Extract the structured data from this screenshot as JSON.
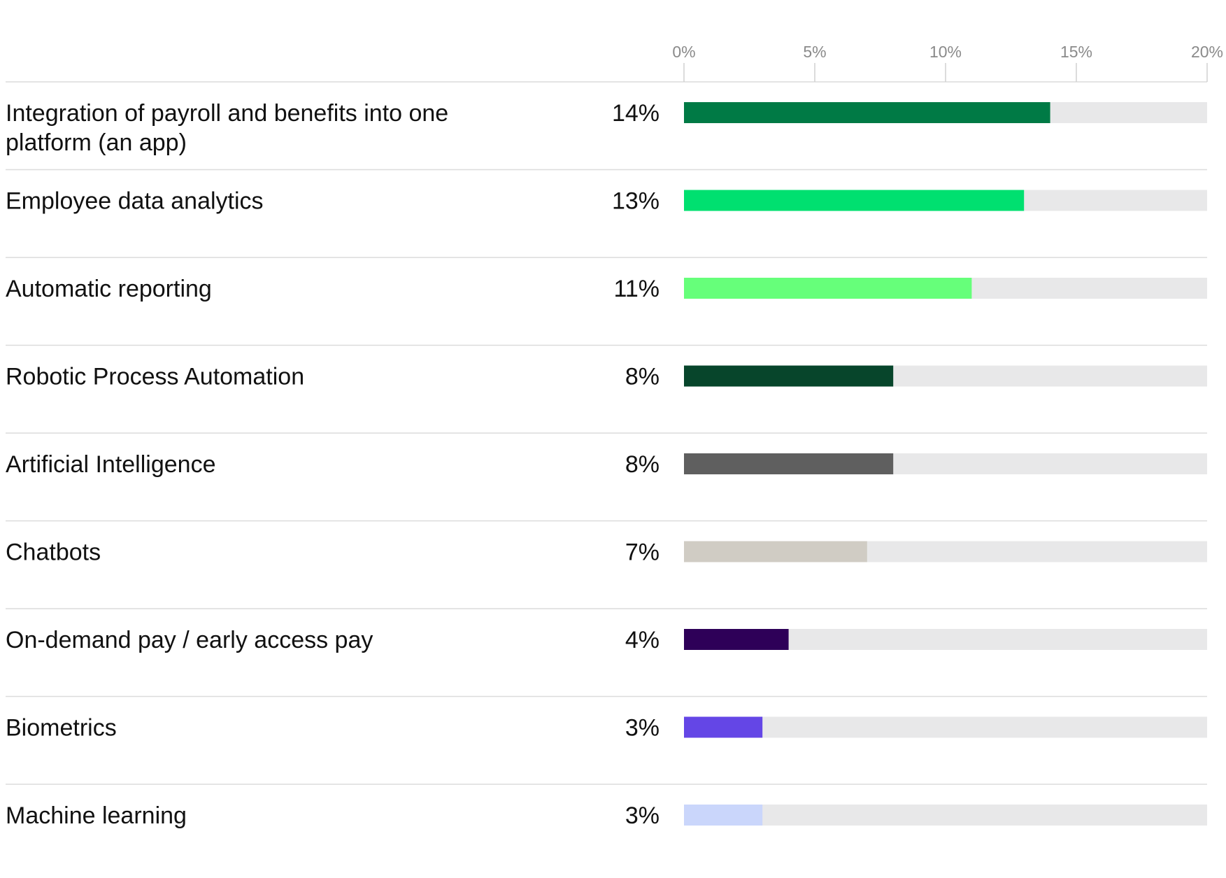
{
  "chart_data": {
    "type": "bar",
    "orientation": "horizontal",
    "title": "",
    "xlabel": "",
    "ylabel": "",
    "xlim": [
      0,
      20
    ],
    "ticks": [
      {
        "value": 0,
        "label": "0%"
      },
      {
        "value": 5,
        "label": "5%"
      },
      {
        "value": 10,
        "label": "10%"
      },
      {
        "value": 15,
        "label": "15%"
      },
      {
        "value": 20,
        "label": "20%"
      }
    ],
    "track_color": "#e8e8e9",
    "grid": false,
    "legend": "none",
    "categories": [
      [
        "Integration of payroll and benefits into one",
        "platform (an app)"
      ],
      [
        "Employee data analytics"
      ],
      [
        "Automatic reporting"
      ],
      [
        "Robotic Process Automation"
      ],
      [
        "Artificial Intelligence"
      ],
      [
        "Chatbots"
      ],
      [
        "On-demand pay / early access pay"
      ],
      [
        "Biometrics"
      ],
      [
        "Machine learning"
      ]
    ],
    "values": [
      14,
      13,
      11,
      8,
      8,
      7,
      4,
      3,
      3
    ],
    "value_labels": [
      "14%",
      "13%",
      "11%",
      "8%",
      "8%",
      "7%",
      "4%",
      "3%",
      "3%"
    ],
    "colors": [
      "#007a45",
      "#00e070",
      "#66ff7a",
      "#07452b",
      "#5f5f5f",
      "#d0ccc4",
      "#2e0058",
      "#6446e6",
      "#cad6fb"
    ]
  }
}
